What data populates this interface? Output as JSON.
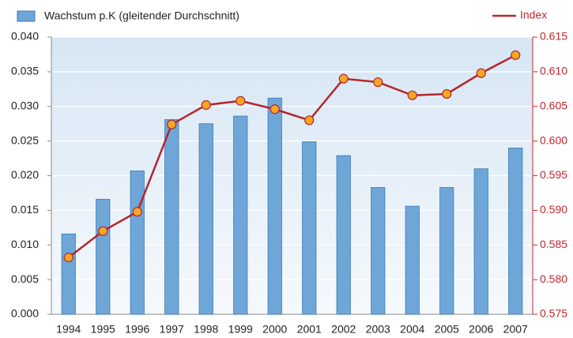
{
  "chart_data": {
    "type": "bar-line",
    "categories": [
      "1994",
      "1995",
      "1996",
      "1997",
      "1998",
      "1999",
      "2000",
      "2001",
      "2002",
      "2003",
      "2004",
      "2005",
      "2006",
      "2007"
    ],
    "series": [
      {
        "name": "Wachstum p.K (gleitender Durchschnitt)",
        "type": "bar",
        "axis": "y",
        "color": "#6fa6d8",
        "values": [
          0.0116,
          0.0166,
          0.0207,
          0.0281,
          0.0275,
          0.0286,
          0.0312,
          0.0249,
          0.0229,
          0.0183,
          0.0156,
          0.0183,
          0.021,
          0.024
        ]
      },
      {
        "name": "Index",
        "type": "line",
        "axis": "y2",
        "color": "#b5262e",
        "marker_color": "#f5a623",
        "values": [
          0.5832,
          0.587,
          0.5898,
          0.6024,
          0.6052,
          0.6058,
          0.6046,
          0.603,
          0.609,
          0.6085,
          0.6066,
          0.6068,
          0.6098,
          0.6124
        ]
      }
    ],
    "ylim": [
      0,
      0.04
    ],
    "yticks": [
      {
        "value": 0,
        "label": "0.000"
      },
      0.005,
      {
        "value": 0.01,
        "label": "0.010"
      },
      0.015,
      {
        "value": 0.02,
        "label": "0.020"
      },
      0.025,
      {
        "value": 0.03,
        "label": "0.030"
      },
      0.035,
      {
        "value": 0.04,
        "label": "0.040"
      }
    ],
    "y2lim": [
      0.575,
      0.615
    ],
    "y2ticks": [
      0.575,
      {
        "value": 0.58,
        "label": "0.580"
      },
      0.585,
      {
        "value": 0.59,
        "label": "0.590"
      },
      0.595,
      {
        "value": 0.6,
        "label": "0.600"
      },
      0.605,
      {
        "value": 0.61,
        "label": "0.610"
      },
      0.615
    ],
    "grid": true
  }
}
